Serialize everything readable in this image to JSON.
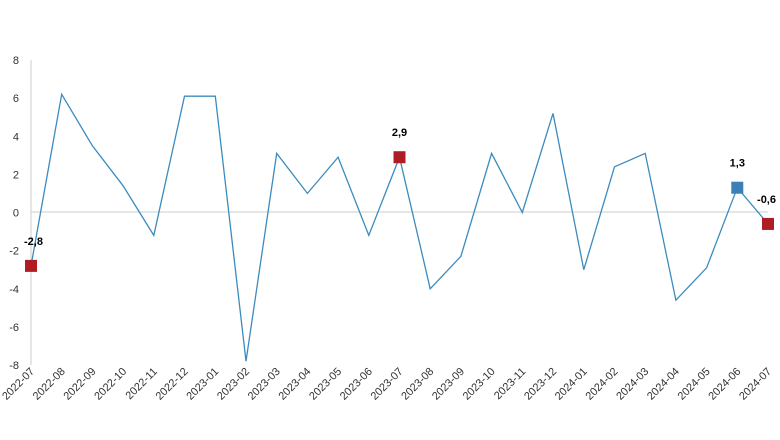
{
  "chart_data": {
    "type": "line",
    "x": [
      "2022-07",
      "2022-08",
      "2022-09",
      "2022-10",
      "2022-11",
      "2022-12",
      "2023-01",
      "2023-02",
      "2023-03",
      "2023-04",
      "2023-05",
      "2023-06",
      "2023-07",
      "2023-08",
      "2023-09",
      "2023-10",
      "2023-11",
      "2023-12",
      "2024-01",
      "2024-02",
      "2024-03",
      "2024-04",
      "2024-05",
      "2024-06",
      "2024-07"
    ],
    "series": [
      {
        "values": [
          -2.8,
          6.2,
          3.5,
          1.4,
          -1.2,
          6.1,
          6.1,
          -7.8,
          3.1,
          1.0,
          2.9,
          -1.2,
          2.9,
          -4.0,
          -2.3,
          3.1,
          0.0,
          5.2,
          -3.0,
          2.4,
          3.1,
          -4.6,
          -2.9,
          1.3,
          -0.6
        ],
        "color": "#3b8bbf"
      }
    ],
    "highlighted_points": [
      {
        "x": "2022-07",
        "value": -2.8,
        "label": "-2,8",
        "color": "#b01c24"
      },
      {
        "x": "2023-07",
        "value": 2.9,
        "label": "2,9",
        "color": "#b01c24"
      },
      {
        "x": "2024-06",
        "value": 1.3,
        "label": "1,3",
        "color": "#3a7fb8"
      },
      {
        "x": "2024-07",
        "value": -0.6,
        "label": "-0,6",
        "color": "#b01c24"
      }
    ],
    "y_ticks": [
      -8,
      -6,
      -4,
      -2,
      0,
      2,
      4,
      6,
      8
    ],
    "ylim": [
      -8,
      8
    ],
    "grid": false,
    "legend": "none"
  }
}
